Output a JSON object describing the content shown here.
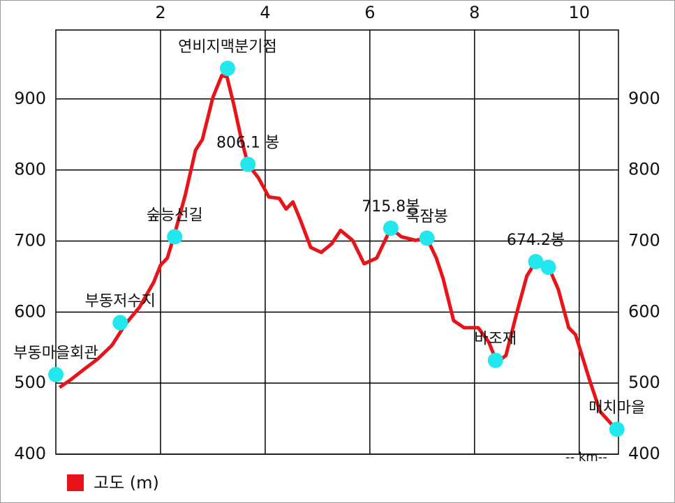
{
  "chart_data": {
    "type": "line",
    "x_label": "-- km--",
    "xlim": [
      0,
      10.75
    ],
    "xticks": [
      2,
      4,
      6,
      8,
      10
    ],
    "ylim": [
      400,
      997
    ],
    "yticks": [
      400,
      500,
      600,
      700,
      800,
      900
    ],
    "grid": true,
    "legend": "bottom-left",
    "series": [
      {
        "name": "고도 (m)",
        "color": "#e8141a",
        "x": [
          0.07,
          0.27,
          0.53,
          0.8,
          1.07,
          1.33,
          1.6,
          1.87,
          2.0,
          2.13,
          2.27,
          2.47,
          2.67,
          2.8,
          3.0,
          3.17,
          3.27,
          3.4,
          3.53,
          3.67,
          3.87,
          4.07,
          4.27,
          4.4,
          4.53,
          4.67,
          4.87,
          5.07,
          5.27,
          5.44,
          5.67,
          5.89,
          6.13,
          6.4,
          6.6,
          6.87,
          7.09,
          7.27,
          7.4,
          7.6,
          7.8,
          8.07,
          8.27,
          8.43,
          8.6,
          8.8,
          9.0,
          9.17,
          9.4,
          9.6,
          9.8,
          9.93,
          10.2,
          10.4,
          10.67
        ],
        "values": [
          494,
          504,
          519,
          534,
          553,
          583,
          607,
          642,
          666,
          676,
          710,
          764,
          828,
          843,
          902,
          933,
          931,
          892,
          848,
          808,
          789,
          762,
          760,
          745,
          755,
          730,
          691,
          684,
          696,
          715,
          701,
          668,
          676,
          718,
          706,
          701,
          704,
          676,
          647,
          588,
          578,
          578,
          558,
          529,
          539,
          597,
          651,
          671,
          666,
          632,
          578,
          568,
          504,
          460,
          438
        ]
      }
    ],
    "waypoints": {
      "color": "#22e8ee",
      "names": [
        "부동마을회관",
        "부동저수지",
        "숲능선길",
        "연비지맥분기점",
        "806.1 봉",
        "715.8봉",
        "옥잠봉",
        "바조재",
        "674.2봉",
        null,
        "매치마을"
      ],
      "x": [
        0,
        1.23,
        2.27,
        3.28,
        3.67,
        6.4,
        7.09,
        8.4,
        9.17,
        9.41,
        10.72
      ],
      "values": [
        512,
        585,
        706,
        943,
        808,
        718,
        704,
        532,
        671,
        663,
        435
      ]
    }
  }
}
